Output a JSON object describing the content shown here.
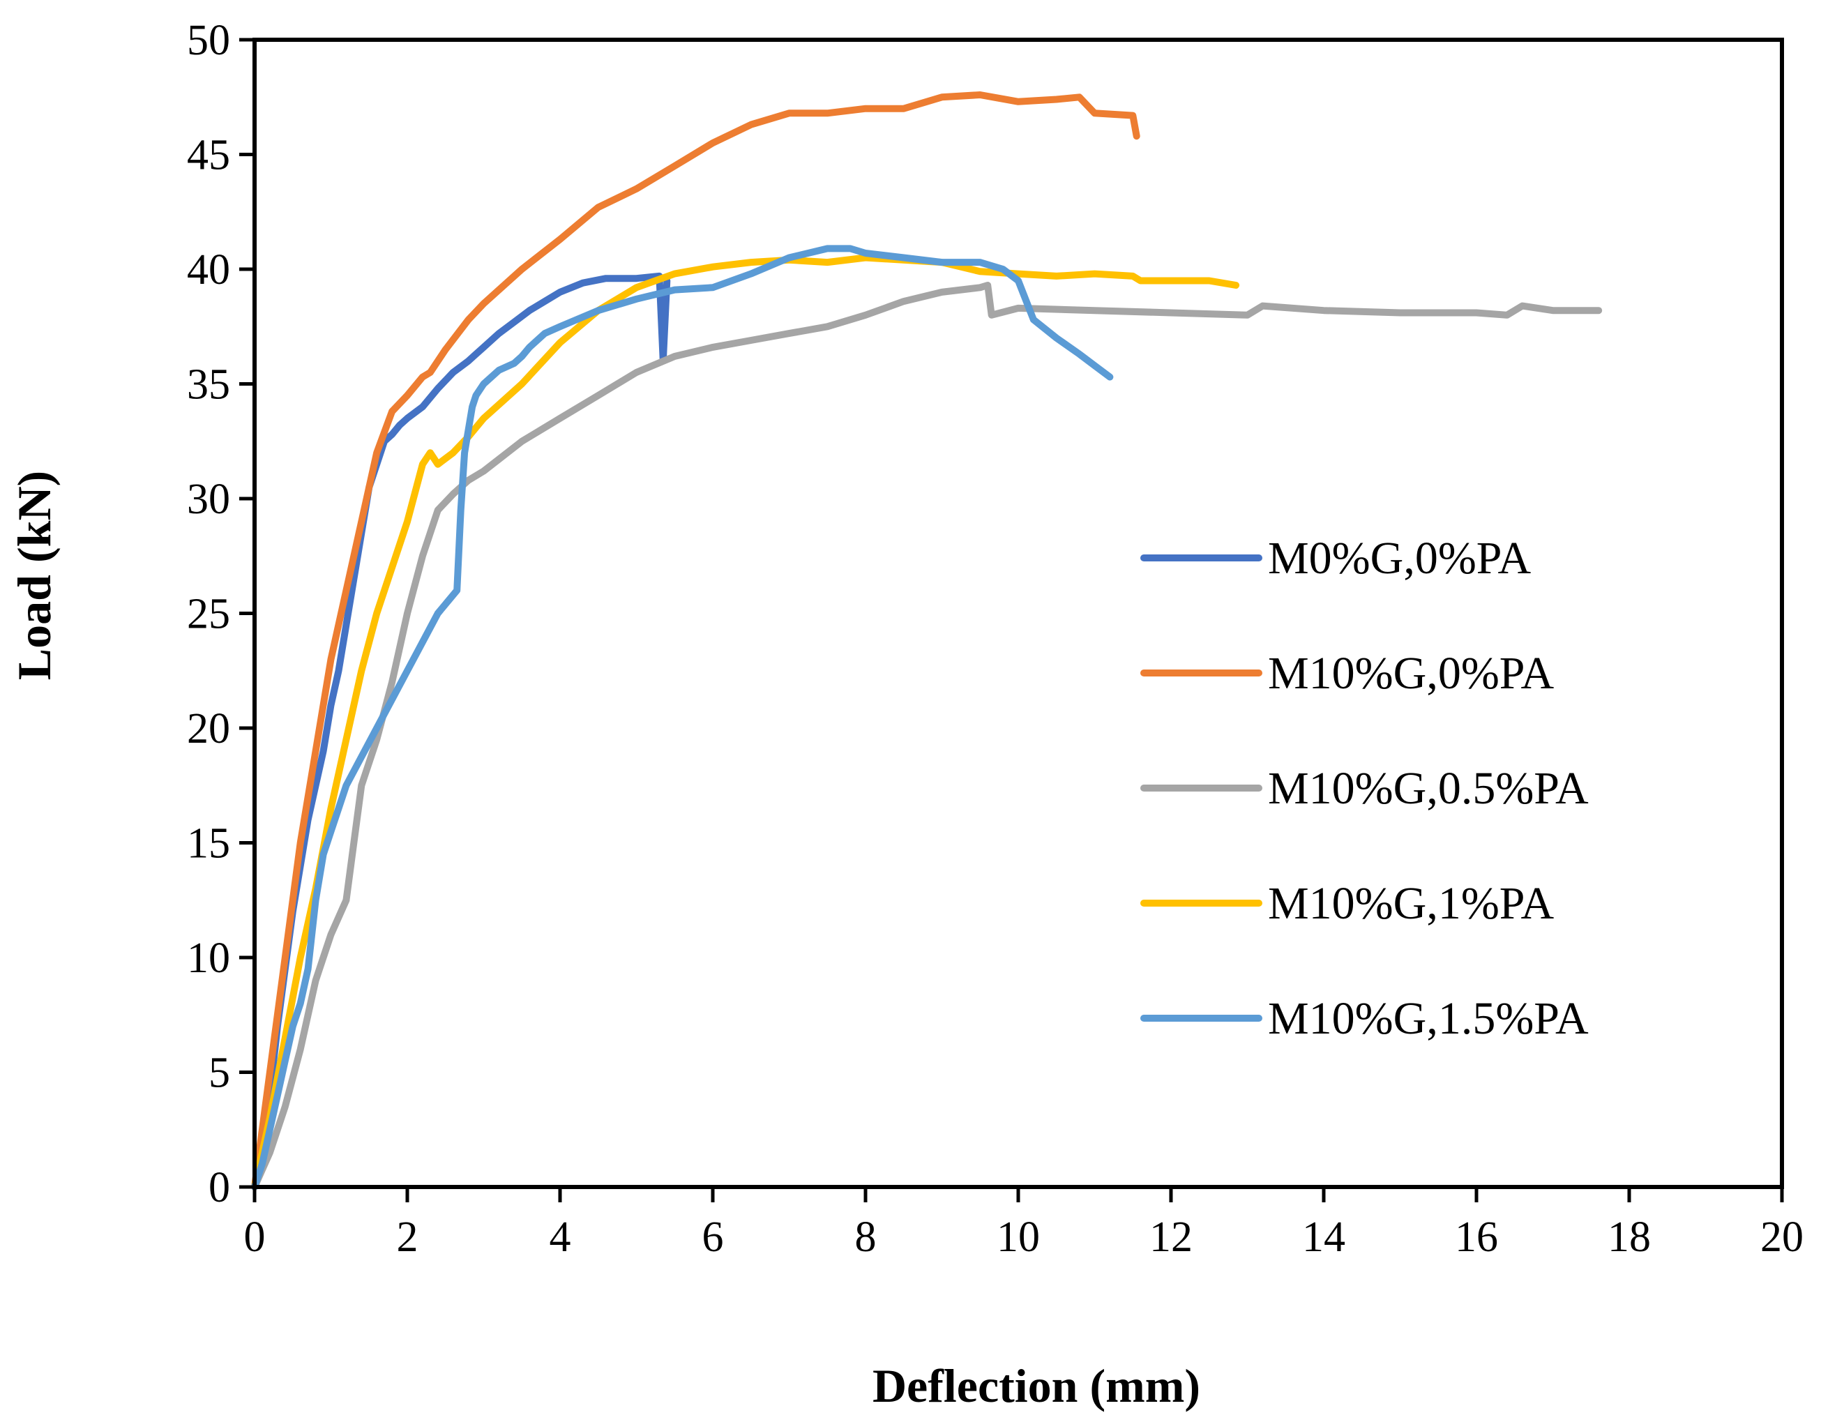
{
  "chart_data": {
    "type": "line",
    "title": "",
    "xlabel": "Deflection (mm)",
    "ylabel": "Load (kN)",
    "xlim": [
      0,
      20
    ],
    "ylim": [
      0,
      50
    ],
    "xticks": [
      0,
      2,
      4,
      6,
      8,
      10,
      12,
      14,
      16,
      18,
      20
    ],
    "yticks": [
      0,
      5,
      10,
      15,
      20,
      25,
      30,
      35,
      40,
      45,
      50
    ],
    "grid": false,
    "legend_position": "right",
    "series": [
      {
        "name": "M0%G,0%PA",
        "color": "#4472C4",
        "x": [
          0,
          0.1,
          0.2,
          0.3,
          0.4,
          0.5,
          0.6,
          0.7,
          0.8,
          0.9,
          1.0,
          1.1,
          1.2,
          1.3,
          1.4,
          1.5,
          1.6,
          1.7,
          1.8,
          1.9,
          2.0,
          2.2,
          2.4,
          2.6,
          2.8,
          2.9,
          3.0,
          3.2,
          3.4,
          3.6,
          3.8,
          4.0,
          4.3,
          4.6,
          5.0,
          5.3,
          5.35,
          5.4
        ],
        "y": [
          0,
          2,
          4,
          7,
          9.5,
          12,
          14,
          16,
          17.5,
          19,
          21,
          22.5,
          24.5,
          26.5,
          28.5,
          30.5,
          31.5,
          32.5,
          32.8,
          33.2,
          33.5,
          34.0,
          34.8,
          35.5,
          36.0,
          36.3,
          36.6,
          37.2,
          37.7,
          38.2,
          38.6,
          39.0,
          39.4,
          39.6,
          39.6,
          39.7,
          36.0,
          39.5
        ]
      },
      {
        "name": "M10%G,0%PA",
        "color": "#ED7D31",
        "x": [
          0,
          0.2,
          0.4,
          0.6,
          0.8,
          1.0,
          1.2,
          1.4,
          1.6,
          1.8,
          2.0,
          2.2,
          2.3,
          2.5,
          2.8,
          3.0,
          3.5,
          4.0,
          4.5,
          5.0,
          5.5,
          6.0,
          6.5,
          7.0,
          7.5,
          8.0,
          8.5,
          9.0,
          9.5,
          10.0,
          10.5,
          10.8,
          11.0,
          11.5,
          11.55
        ],
        "y": [
          0,
          5,
          10,
          15,
          19,
          23,
          26,
          29,
          32,
          33.8,
          34.5,
          35.3,
          35.5,
          36.5,
          37.8,
          38.5,
          40.0,
          41.3,
          42.7,
          43.5,
          44.5,
          45.5,
          46.3,
          46.8,
          46.8,
          47.0,
          47.0,
          47.5,
          47.6,
          47.3,
          47.4,
          47.5,
          46.8,
          46.7,
          45.8
        ]
      },
      {
        "name": "M10%G,0.5%PA",
        "color": "#A5A5A5",
        "x": [
          0,
          0.2,
          0.4,
          0.6,
          0.8,
          1.0,
          1.2,
          1.4,
          1.6,
          1.8,
          2.0,
          2.2,
          2.4,
          2.6,
          2.8,
          3.0,
          3.5,
          4.0,
          4.5,
          5.0,
          5.5,
          6.0,
          6.5,
          7.0,
          7.5,
          8.0,
          8.5,
          9.0,
          9.5,
          9.6,
          9.65,
          10.0,
          11.0,
          12.0,
          13.0,
          13.2,
          14.0,
          15.0,
          16.0,
          16.4,
          16.6,
          17.0,
          17.6
        ],
        "y": [
          0,
          1.5,
          3.5,
          6,
          9,
          11,
          12.5,
          17.5,
          19.5,
          22,
          25,
          27.5,
          29.5,
          30.2,
          30.8,
          31.2,
          32.5,
          33.5,
          34.5,
          35.5,
          36.2,
          36.6,
          36.9,
          37.2,
          37.5,
          38.0,
          38.6,
          39.0,
          39.2,
          39.3,
          38.0,
          38.3,
          38.2,
          38.1,
          38.0,
          38.4,
          38.2,
          38.1,
          38.1,
          38.0,
          38.4,
          38.2,
          38.2
        ]
      },
      {
        "name": "M10%G,1%PA",
        "color": "#FFC000",
        "x": [
          0,
          0.2,
          0.4,
          0.6,
          0.8,
          1.0,
          1.2,
          1.4,
          1.6,
          1.8,
          2.0,
          2.2,
          2.3,
          2.4,
          2.6,
          2.8,
          3.0,
          3.5,
          4.0,
          4.5,
          5.0,
          5.5,
          6.0,
          6.5,
          7.0,
          7.5,
          8.0,
          9.0,
          9.5,
          10.0,
          10.5,
          11.0,
          11.5,
          11.6,
          12.0,
          12.5,
          12.85
        ],
        "y": [
          0,
          3,
          6.5,
          10,
          13,
          16.5,
          19.5,
          22.5,
          25,
          27,
          29,
          31.5,
          32.0,
          31.5,
          32.0,
          32.7,
          33.5,
          35.0,
          36.8,
          38.2,
          39.2,
          39.8,
          40.1,
          40.3,
          40.4,
          40.3,
          40.5,
          40.3,
          39.9,
          39.8,
          39.7,
          39.8,
          39.7,
          39.5,
          39.5,
          39.5,
          39.3
        ]
      },
      {
        "name": "M10%G,1.5%PA",
        "color": "#5B9BD5",
        "x": [
          0,
          0.1,
          0.2,
          0.3,
          0.4,
          0.5,
          0.6,
          0.7,
          0.8,
          0.9,
          1.0,
          1.1,
          1.2,
          1.6,
          2.0,
          2.4,
          2.65,
          2.7,
          2.75,
          2.85,
          2.9,
          3.0,
          3.2,
          3.4,
          3.5,
          3.6,
          3.8,
          4.0,
          4.5,
          5.0,
          5.5,
          6.0,
          6.5,
          7.0,
          7.5,
          7.8,
          8.0,
          8.5,
          9.0,
          9.5,
          9.8,
          10.0,
          10.2,
          10.5,
          10.8,
          11.0,
          11.2
        ],
        "y": [
          0,
          1,
          2.5,
          4,
          5.5,
          7,
          8,
          9.5,
          12.5,
          14.5,
          15.5,
          16.5,
          17.5,
          20.0,
          22.5,
          25.0,
          26.0,
          29.5,
          32.0,
          34.0,
          34.5,
          35.0,
          35.6,
          35.9,
          36.2,
          36.6,
          37.2,
          37.5,
          38.2,
          38.7,
          39.1,
          39.2,
          39.8,
          40.5,
          40.9,
          40.9,
          40.7,
          40.5,
          40.3,
          40.3,
          40.0,
          39.5,
          37.8,
          37.0,
          36.3,
          35.8,
          35.3
        ]
      }
    ]
  }
}
